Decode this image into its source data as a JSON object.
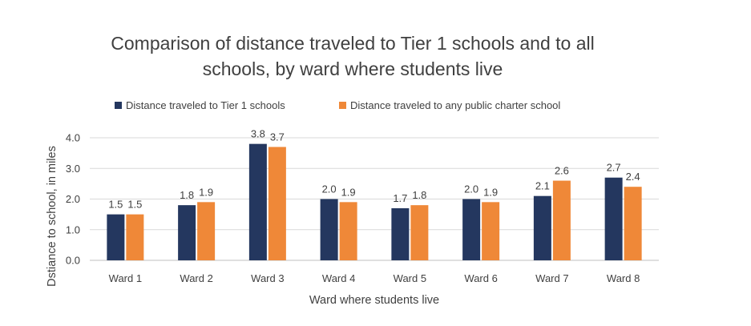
{
  "chart_data": {
    "type": "bar",
    "title_line1": "Comparison of distance traveled to Tier 1 schools and to all",
    "title_line2": "schools, by ward where students live",
    "xlabel": "Ward where students live",
    "ylabel": "Dstiance to school, in miles",
    "ylim": [
      0,
      4
    ],
    "yticks": [
      "0.0",
      "1.0",
      "2.0",
      "3.0",
      "4.0"
    ],
    "grid": true,
    "legend_position": "top",
    "categories": [
      "Ward 1",
      "Ward 2",
      "Ward 3",
      "Ward 4",
      "Ward 5",
      "Ward 6",
      "Ward 7",
      "Ward 8"
    ],
    "series": [
      {
        "name": "Distance traveled to Tier 1 schools",
        "color": "#24375f",
        "values": [
          1.5,
          1.8,
          3.8,
          2.0,
          1.7,
          2.0,
          2.1,
          2.7
        ],
        "labels": [
          "1.5",
          "1.8",
          "3.8",
          "2.0",
          "1.7",
          "2.0",
          "2.1",
          "2.7"
        ]
      },
      {
        "name": "Distance traveled to any public charter school",
        "color": "#ef8838",
        "values": [
          1.5,
          1.9,
          3.7,
          1.9,
          1.8,
          1.9,
          2.6,
          2.4
        ],
        "labels": [
          "1.5",
          "1.9",
          "3.7",
          "1.9",
          "1.8",
          "1.9",
          "2.6",
          "2.4"
        ]
      }
    ]
  }
}
